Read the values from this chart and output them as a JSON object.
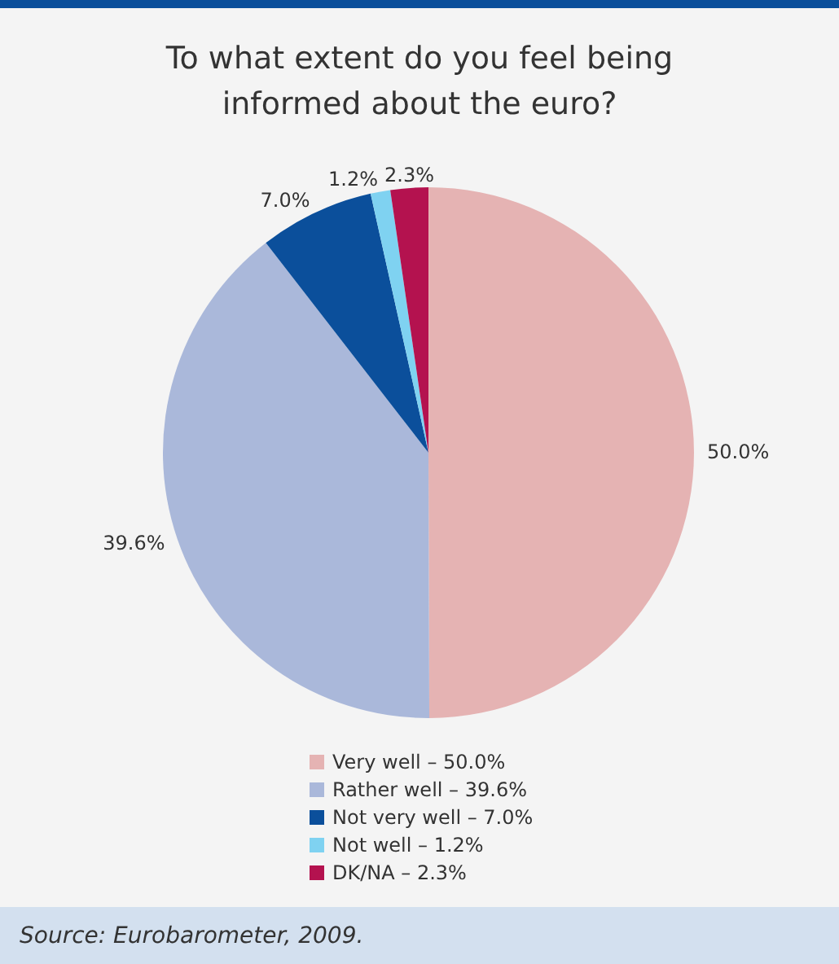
{
  "chart_data": {
    "type": "pie",
    "title": "To what extent do you feel being\ninformed about the euro?",
    "categories": [
      "Very well – 50.0%",
      "Rather well – 39.6%",
      "Not very well – 7.0%",
      "Not well – 1.2%",
      "DK/NA – 2.3%"
    ],
    "values": [
      50.0,
      39.6,
      7.0,
      1.2,
      2.3
    ],
    "value_labels": [
      "50.0%",
      "39.6%",
      "7.0%",
      "1.2%",
      "2.3%"
    ],
    "colors": [
      "#e5b3b3",
      "#aab8da",
      "#0b4f9b",
      "#7fd2f1",
      "#b4124f"
    ],
    "legend": "bottom",
    "annotations": [
      "Source: Eurobarometer, 2009."
    ]
  }
}
